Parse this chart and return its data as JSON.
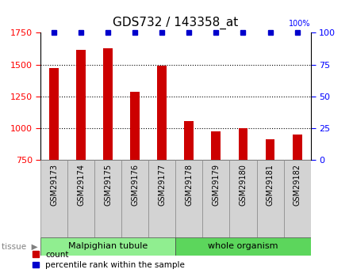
{
  "title": "GDS732 / 143358_at",
  "categories": [
    "GSM29173",
    "GSM29174",
    "GSM29175",
    "GSM29176",
    "GSM29177",
    "GSM29178",
    "GSM29179",
    "GSM29180",
    "GSM29181",
    "GSM29182"
  ],
  "counts": [
    1470,
    1615,
    1630,
    1285,
    1490,
    1055,
    975,
    1000,
    910,
    950
  ],
  "percentiles": [
    100,
    100,
    100,
    100,
    100,
    100,
    100,
    100,
    100,
    100
  ],
  "ylim": [
    750,
    1750
  ],
  "yticks": [
    750,
    1000,
    1250,
    1500,
    1750
  ],
  "y2lim": [
    0,
    100
  ],
  "y2ticks": [
    0,
    25,
    50,
    75,
    100
  ],
  "bar_color": "#cc0000",
  "dot_color": "#0000cc",
  "tissue_groups": [
    {
      "label": "Malpighian tubule",
      "indices": [
        0,
        1,
        2,
        3,
        4
      ],
      "color": "#90ee90"
    },
    {
      "label": "whole organism",
      "indices": [
        5,
        6,
        7,
        8,
        9
      ],
      "color": "#5cd65c"
    }
  ],
  "tissue_label": "tissue",
  "legend_count_label": "count",
  "legend_pct_label": "percentile rank within the sample",
  "background_color": "#ffffff",
  "label_box_color": "#d3d3d3",
  "bar_width": 0.35
}
